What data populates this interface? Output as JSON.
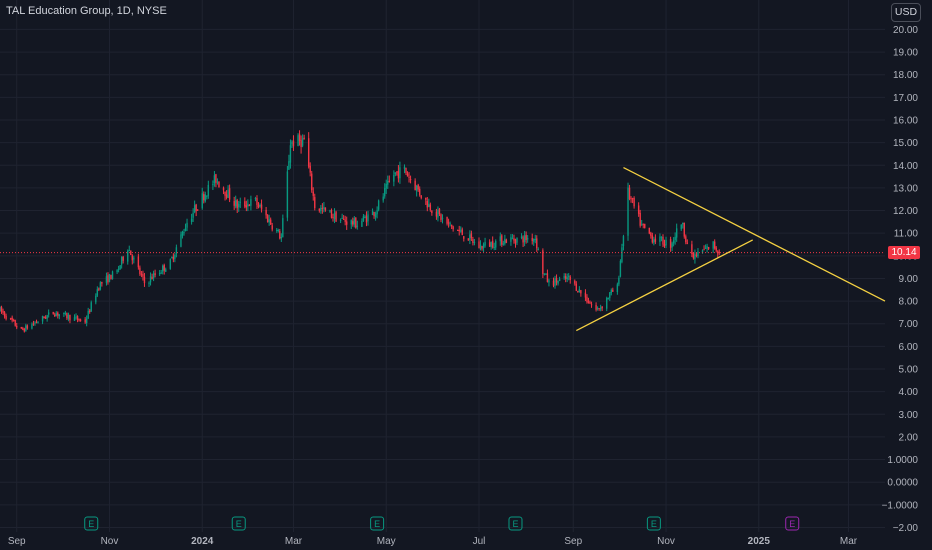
{
  "header": {
    "title": "TAL Education Group, 1D, NYSE",
    "currency": "USD"
  },
  "price_tag": "10.14",
  "colors": {
    "background": "#131722",
    "up": "#089981",
    "down": "#f23645",
    "trendline": "#f5d142",
    "earnings_past": "#089981",
    "earnings_future": "#9c27b0"
  },
  "earnings_markers": [
    {
      "date": "Oct 2023",
      "label": "E",
      "status": "past"
    },
    {
      "date": "Jan 2024",
      "label": "E",
      "status": "past"
    },
    {
      "date": "Apr 2024",
      "label": "E",
      "status": "past"
    },
    {
      "date": "Jul 2024",
      "label": "E",
      "status": "past"
    },
    {
      "date": "Oct 2024",
      "label": "E",
      "status": "past"
    },
    {
      "date": "Jan 2025",
      "label": "E",
      "status": "future"
    }
  ],
  "chart_data": {
    "type": "candlestick",
    "symbol": "TAL Education Group",
    "interval": "1D",
    "exchange": "NYSE",
    "last_price": 10.14,
    "y_range": [
      -2.2,
      21.3
    ],
    "x_range": [
      "2023-08-21",
      "2025-03-25"
    ],
    "y_ticks": [
      "20.00",
      "19.00",
      "18.00",
      "17.00",
      "16.00",
      "15.00",
      "14.00",
      "13.00",
      "12.00",
      "11.00",
      "10.00",
      "9.00",
      "8.00",
      "7.00",
      "6.00",
      "5.00",
      "4.00",
      "3.00",
      "2.00",
      "1.0000",
      "0.0000",
      "−1.0000",
      "−2.00"
    ],
    "y_tick_values": [
      20,
      19,
      18,
      17,
      16,
      15,
      14,
      13,
      12,
      11,
      10,
      9,
      8,
      7,
      6,
      5,
      4,
      3,
      2,
      1,
      0,
      -1,
      -2
    ],
    "x_ticks": [
      {
        "label": "Sep",
        "date": "2023-09-01"
      },
      {
        "label": "Nov",
        "date": "2023-11-01"
      },
      {
        "label": "2024",
        "date": "2024-01-01"
      },
      {
        "label": "Mar",
        "date": "2024-03-01"
      },
      {
        "label": "May",
        "date": "2024-05-01"
      },
      {
        "label": "Jul",
        "date": "2024-07-01"
      },
      {
        "label": "Sep",
        "date": "2024-09-01"
      },
      {
        "label": "Nov",
        "date": "2024-11-01"
      },
      {
        "label": "2025",
        "date": "2025-01-01"
      },
      {
        "label": "Mar",
        "date": "2025-03-01"
      }
    ],
    "price_path": [
      [
        "2023-08-21",
        7.6
      ],
      [
        "2023-09-04",
        6.7
      ],
      [
        "2023-09-25",
        7.5
      ],
      [
        "2023-10-16",
        7.1
      ],
      [
        "2023-10-25",
        8.7
      ],
      [
        "2023-11-06",
        9.3
      ],
      [
        "2023-11-13",
        10.4
      ],
      [
        "2023-11-24",
        8.8
      ],
      [
        "2023-12-11",
        9.7
      ],
      [
        "2023-12-22",
        11.5
      ],
      [
        "2024-01-03",
        12.8
      ],
      [
        "2024-01-10",
        13.4
      ],
      [
        "2024-01-24",
        12.2
      ],
      [
        "2024-02-05",
        12.4
      ],
      [
        "2024-02-22",
        10.8
      ],
      [
        "2024-02-28",
        15.0
      ],
      [
        "2024-03-08",
        15.1
      ],
      [
        "2024-03-15",
        12.2
      ],
      [
        "2024-04-01",
        11.6
      ],
      [
        "2024-04-12",
        11.4
      ],
      [
        "2024-04-24",
        12.0
      ],
      [
        "2024-05-06",
        13.6
      ],
      [
        "2024-05-13",
        13.8
      ],
      [
        "2024-05-27",
        12.4
      ],
      [
        "2024-06-10",
        11.4
      ],
      [
        "2024-06-24",
        10.8
      ],
      [
        "2024-07-01",
        10.4
      ],
      [
        "2024-07-17",
        10.7
      ],
      [
        "2024-08-07",
        10.8
      ],
      [
        "2024-08-12",
        9.3
      ],
      [
        "2024-08-16",
        8.8
      ],
      [
        "2024-08-29",
        9.0
      ],
      [
        "2024-09-16",
        7.6
      ],
      [
        "2024-09-20",
        7.8
      ],
      [
        "2024-09-25",
        8.3
      ],
      [
        "2024-09-30",
        8.6
      ],
      [
        "2024-10-07",
        12.8
      ],
      [
        "2024-10-16",
        11.3
      ],
      [
        "2024-10-23",
        10.8
      ],
      [
        "2024-11-04",
        10.5
      ],
      [
        "2024-11-11",
        11.5
      ],
      [
        "2024-11-18",
        9.9
      ],
      [
        "2024-12-02",
        10.5
      ],
      [
        "2024-12-06",
        10.14
      ]
    ],
    "annotations": [
      {
        "type": "trendline",
        "label": "upper",
        "from": {
          "date": "2024-10-04",
          "value": 13.9
        },
        "to": {
          "date": "2025-03-25",
          "value": 8.0
        }
      },
      {
        "type": "trendline",
        "label": "lower",
        "from": {
          "date": "2024-09-03",
          "value": 6.7
        },
        "to": {
          "date": "2024-12-28",
          "value": 10.7
        }
      },
      {
        "type": "price_line",
        "value": 10.14
      }
    ],
    "grid": true
  }
}
